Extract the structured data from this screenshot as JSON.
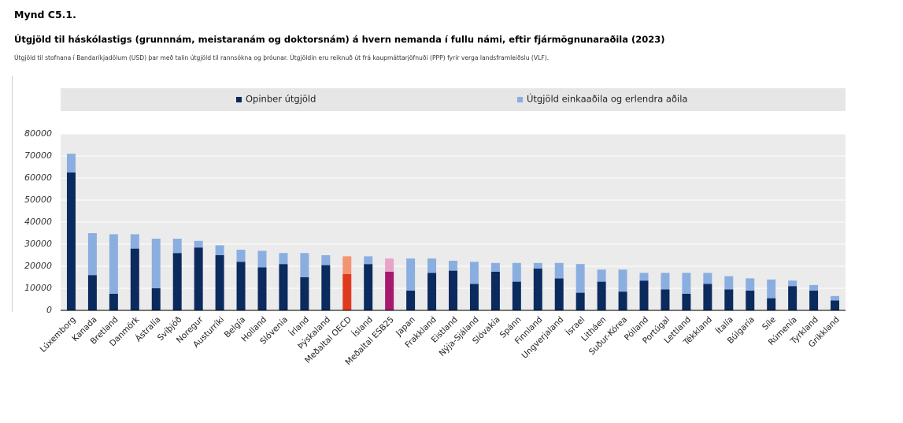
{
  "figure": {
    "number": "Mynd C5.1.",
    "title": "Útgjöld til háskólastigs (grunnnám, meistaranám og doktorsnám) á hvern nemanda í fullu námi, eftir fjármögnunaraðila (2023)",
    "subtitle": "Útgjöld til stofnana í Bandaríkjadölum (USD) þar með talin útgjöld til rannsókna og þróunar. Útgjöldin eru reiknuð út frá kaupmáttarjöfnuði (PPP) fyrir verga landsframleiðslu (VLF)."
  },
  "chart_data": {
    "type": "bar",
    "stacked": true,
    "title": "",
    "xlabel": "",
    "ylabel": "",
    "ylim": [
      0,
      80000
    ],
    "yticks": [
      0,
      10000,
      20000,
      30000,
      40000,
      50000,
      60000,
      70000,
      80000
    ],
    "grid": true,
    "legend_position": "top",
    "categories": [
      "Lúxemborg",
      "Kanada",
      "Bretland",
      "Danmörk",
      "Ástralía",
      "Svíþjóð",
      "Noregur",
      "Austurríki",
      "Belgía",
      "Holland",
      "Slóvenía",
      "Írland",
      "Þýskaland",
      "Meðaltal OECD",
      "Ísland",
      "Meðaltal ESB25",
      "Japan",
      "Frakkland",
      "Eistland",
      "Nýja-Sjáland",
      "Slóvakía",
      "Spánn",
      "Finnland",
      "Ungverjaland",
      "Ísrael",
      "Litháen",
      "Suður-Kórea",
      "Pólland",
      "Portúgal",
      "Lettland",
      "Tékkland",
      "Ítalía",
      "Búlgaría",
      "Síle",
      "Rúmenía",
      "Tyrkland",
      "Grikkland"
    ],
    "series": [
      {
        "name": "Opinber útgjöld",
        "color": "#0b2a5e",
        "values": [
          62500,
          16000,
          7500,
          28000,
          10000,
          26000,
          28500,
          25000,
          22000,
          19500,
          21000,
          15000,
          20500,
          16500,
          21000,
          17500,
          9000,
          17000,
          18000,
          12000,
          17500,
          13000,
          19000,
          14500,
          8000,
          13000,
          8500,
          13500,
          9500,
          7500,
          12000,
          9500,
          9000,
          5500,
          11000,
          9000,
          4500
        ]
      },
      {
        "name": "Útgjöld einkaaðila og erlendra aðila",
        "color": "#8aaee0",
        "values": [
          8500,
          19000,
          27000,
          6500,
          22500,
          6500,
          3000,
          4500,
          5500,
          7500,
          5000,
          11000,
          4500,
          8000,
          3500,
          6000,
          14500,
          6500,
          4500,
          10000,
          4000,
          8500,
          2500,
          7000,
          13000,
          5500,
          10000,
          3500,
          7500,
          9500,
          5000,
          6000,
          5500,
          8500,
          2500,
          2500,
          2000
        ]
      }
    ],
    "highlights": {
      "Meðaltal OECD": {
        "public_color": "#e03a1e",
        "private_color": "#f39473"
      },
      "Meðaltal ESB25": {
        "public_color": "#a6196d",
        "private_color": "#e8a3c9"
      }
    }
  }
}
